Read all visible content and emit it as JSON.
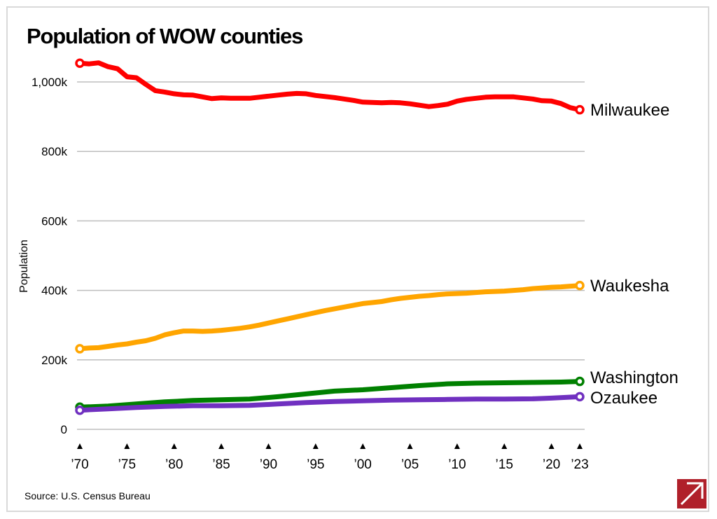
{
  "chart_data": {
    "type": "line",
    "title": "Population of WOW counties",
    "ylabel": "Population",
    "xlabel": "",
    "source": "Source: U.S. Census Bureau",
    "ylim": [
      0,
      1000000
    ],
    "xlim": [
      1970,
      2023
    ],
    "yticks": [
      {
        "value": 0,
        "label": "0"
      },
      {
        "value": 200000,
        "label": "200k"
      },
      {
        "value": 400000,
        "label": "400k"
      },
      {
        "value": 600000,
        "label": "600k"
      },
      {
        "value": 800000,
        "label": "800k"
      },
      {
        "value": 1000000,
        "label": "1,000k"
      }
    ],
    "xticks": [
      {
        "value": 1970,
        "label": "’70"
      },
      {
        "value": 1975,
        "label": "’75"
      },
      {
        "value": 1980,
        "label": "’80"
      },
      {
        "value": 1985,
        "label": "’85"
      },
      {
        "value": 1990,
        "label": "’90"
      },
      {
        "value": 1995,
        "label": "’95"
      },
      {
        "value": 2000,
        "label": "’00"
      },
      {
        "value": 2005,
        "label": "’05"
      },
      {
        "value": 2010,
        "label": "’10"
      },
      {
        "value": 2015,
        "label": "’15"
      },
      {
        "value": 2020,
        "label": "’20"
      },
      {
        "value": 2023,
        "label": "’23"
      }
    ],
    "series": [
      {
        "name": "Milwaukee",
        "color": "#ff0000",
        "x": [
          1970,
          1971,
          1972,
          1973,
          1974,
          1975,
          1976,
          1977,
          1978,
          1979,
          1980,
          1981,
          1982,
          1983,
          1984,
          1985,
          1986,
          1987,
          1988,
          1989,
          1990,
          1991,
          1992,
          1993,
          1994,
          1995,
          1996,
          1997,
          1998,
          1999,
          2000,
          2001,
          2002,
          2003,
          2004,
          2005,
          2006,
          2007,
          2008,
          2009,
          2010,
          2011,
          2012,
          2013,
          2014,
          2015,
          2016,
          2017,
          2018,
          2019,
          2020,
          2021,
          2022,
          2023
        ],
        "y": [
          1054000,
          1052000,
          1055000,
          1044000,
          1038000,
          1015000,
          1012000,
          993000,
          975000,
          971000,
          966000,
          963000,
          962000,
          957000,
          952000,
          954000,
          953000,
          953000,
          953000,
          956000,
          959000,
          962000,
          965000,
          967000,
          966000,
          961000,
          958000,
          955000,
          951000,
          947000,
          942000,
          941000,
          940000,
          941000,
          940000,
          937000,
          933000,
          929000,
          932000,
          936000,
          945000,
          950000,
          953000,
          956000,
          957000,
          957000,
          957000,
          954000,
          951000,
          946000,
          945000,
          938000,
          926000,
          920000
        ]
      },
      {
        "name": "Waukesha",
        "color": "#ffa500",
        "x": [
          1970,
          1971,
          1972,
          1973,
          1974,
          1975,
          1976,
          1977,
          1978,
          1979,
          1980,
          1981,
          1982,
          1983,
          1984,
          1985,
          1986,
          1987,
          1988,
          1989,
          1990,
          1991,
          1992,
          1993,
          1994,
          1995,
          1996,
          1997,
          1998,
          1999,
          2000,
          2001,
          2002,
          2003,
          2004,
          2005,
          2006,
          2007,
          2008,
          2009,
          2010,
          2011,
          2012,
          2013,
          2014,
          2015,
          2016,
          2017,
          2018,
          2019,
          2020,
          2021,
          2022,
          2023
        ],
        "y": [
          232000,
          234000,
          235000,
          239000,
          243000,
          246000,
          251000,
          255000,
          262000,
          272000,
          278000,
          283000,
          283000,
          282000,
          283000,
          285000,
          288000,
          291000,
          295000,
          300000,
          306000,
          312000,
          318000,
          324000,
          330000,
          336000,
          342000,
          347000,
          352000,
          357000,
          362000,
          365000,
          368000,
          373000,
          377000,
          380000,
          383000,
          385000,
          388000,
          390000,
          391000,
          392000,
          394000,
          396000,
          397000,
          398000,
          400000,
          402000,
          405000,
          407000,
          409000,
          410000,
          412000,
          414000
        ]
      },
      {
        "name": "Washington",
        "color": "#008000",
        "x": [
          1970,
          1973,
          1976,
          1979,
          1982,
          1985,
          1988,
          1991,
          1994,
          1997,
          2000,
          2003,
          2006,
          2009,
          2012,
          2015,
          2018,
          2021,
          2023
        ],
        "y": [
          64000,
          67000,
          73000,
          79000,
          83000,
          85000,
          87000,
          94000,
          102000,
          110000,
          114000,
          120000,
          126000,
          131000,
          133000,
          134000,
          135000,
          136000,
          138000
        ]
      },
      {
        "name": "Ozaukee",
        "color": "#7030c0",
        "x": [
          1970,
          1973,
          1976,
          1979,
          1982,
          1985,
          1988,
          1991,
          1994,
          1997,
          2000,
          2003,
          2006,
          2009,
          2012,
          2015,
          2018,
          2020,
          2023
        ],
        "y": [
          55000,
          59000,
          63000,
          66000,
          68000,
          68000,
          69000,
          73000,
          77000,
          80000,
          82000,
          84000,
          85000,
          86000,
          87000,
          87000,
          88000,
          90000,
          94000
        ]
      }
    ]
  },
  "logo": {
    "name": "publisher-logo"
  }
}
